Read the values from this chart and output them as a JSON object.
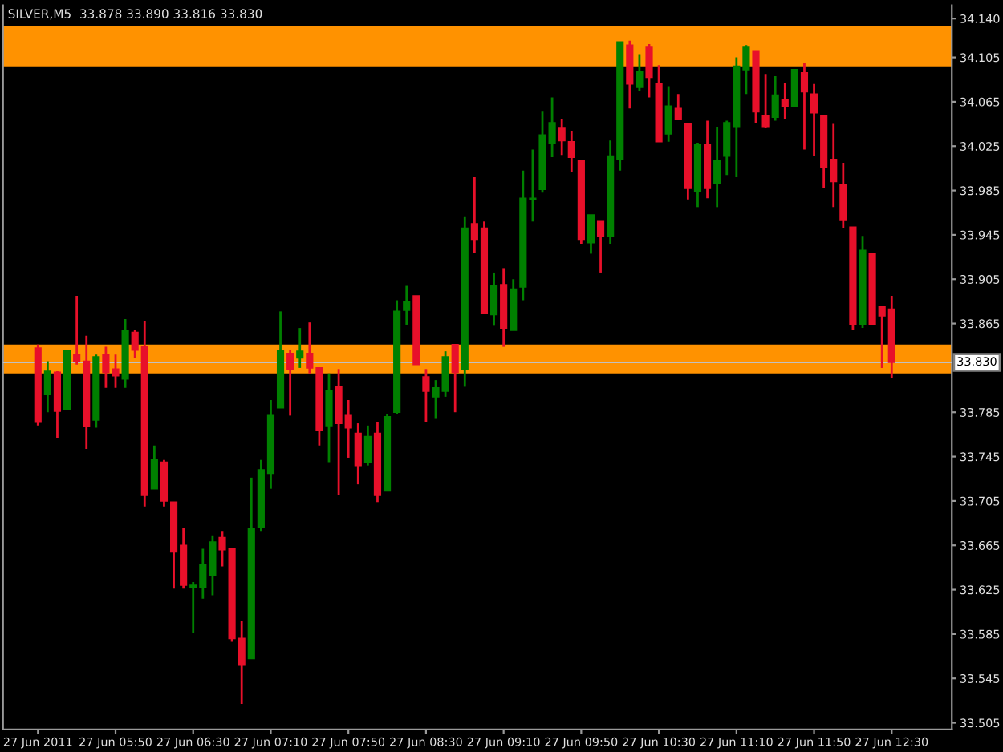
{
  "chart_data": {
    "type": "candlestick",
    "title": "SILVER,M5  33.878 33.890 33.816 33.830",
    "x": [
      "2011-06-27T05:10",
      "2011-06-27T05:15",
      "2011-06-27T05:20",
      "2011-06-27T05:25",
      "2011-06-27T05:30",
      "2011-06-27T05:35",
      "2011-06-27T05:40",
      "2011-06-27T05:45",
      "2011-06-27T05:50",
      "2011-06-27T05:55",
      "2011-06-27T06:00",
      "2011-06-27T06:05",
      "2011-06-27T06:10",
      "2011-06-27T06:15",
      "2011-06-27T06:20",
      "2011-06-27T06:25",
      "2011-06-27T06:30",
      "2011-06-27T06:35",
      "2011-06-27T06:40",
      "2011-06-27T06:45",
      "2011-06-27T06:50",
      "2011-06-27T06:55",
      "2011-06-27T07:00",
      "2011-06-27T07:05",
      "2011-06-27T07:10",
      "2011-06-27T07:15",
      "2011-06-27T07:20",
      "2011-06-27T07:25",
      "2011-06-27T07:30",
      "2011-06-27T07:35",
      "2011-06-27T07:40",
      "2011-06-27T07:45",
      "2011-06-27T07:50",
      "2011-06-27T07:55",
      "2011-06-27T08:00",
      "2011-06-27T08:05",
      "2011-06-27T08:10",
      "2011-06-27T08:15",
      "2011-06-27T08:20",
      "2011-06-27T08:25",
      "2011-06-27T08:30",
      "2011-06-27T08:35",
      "2011-06-27T08:40",
      "2011-06-27T08:45",
      "2011-06-27T08:50",
      "2011-06-27T08:55",
      "2011-06-27T09:00",
      "2011-06-27T09:05",
      "2011-06-27T09:10",
      "2011-06-27T09:15",
      "2011-06-27T09:20",
      "2011-06-27T09:25",
      "2011-06-27T09:30",
      "2011-06-27T09:35",
      "2011-06-27T09:40",
      "2011-06-27T09:45",
      "2011-06-27T09:50",
      "2011-06-27T09:55",
      "2011-06-27T10:00",
      "2011-06-27T10:05",
      "2011-06-27T10:10",
      "2011-06-27T10:15",
      "2011-06-27T10:20",
      "2011-06-27T10:25",
      "2011-06-27T10:30",
      "2011-06-27T10:35",
      "2011-06-27T10:40",
      "2011-06-27T10:45",
      "2011-06-27T10:50",
      "2011-06-27T10:55",
      "2011-06-27T11:00",
      "2011-06-27T11:05",
      "2011-06-27T11:10",
      "2011-06-27T11:15",
      "2011-06-27T11:20",
      "2011-06-27T11:25",
      "2011-06-27T11:30",
      "2011-06-27T11:35",
      "2011-06-27T11:40",
      "2011-06-27T11:45",
      "2011-06-27T11:50",
      "2011-06-27T11:55",
      "2011-06-27T12:00",
      "2011-06-27T12:05",
      "2011-06-27T12:10",
      "2011-06-27T12:15",
      "2011-06-27T12:20",
      "2011-06-27T12:25",
      "2011-06-27T12:30"
    ],
    "ohlc": [
      [
        33.843,
        33.846,
        33.773,
        33.776
      ],
      [
        33.801,
        33.831,
        33.785,
        33.822
      ],
      [
        33.821,
        33.822,
        33.762,
        33.786
      ],
      [
        33.788,
        33.841,
        33.788,
        33.841
      ],
      [
        33.837,
        33.89,
        33.828,
        33.831
      ],
      [
        33.831,
        33.854,
        33.752,
        33.772
      ],
      [
        33.778,
        33.837,
        33.771,
        33.835
      ],
      [
        33.837,
        33.844,
        33.807,
        33.821
      ],
      [
        33.824,
        33.837,
        33.807,
        33.818
      ],
      [
        33.815,
        33.869,
        33.807,
        33.859
      ],
      [
        33.857,
        33.859,
        33.834,
        33.841
      ],
      [
        33.844,
        33.867,
        33.7,
        33.71
      ],
      [
        33.716,
        33.755,
        33.716,
        33.742
      ],
      [
        33.74,
        33.742,
        33.7,
        33.705
      ],
      [
        33.704,
        33.704,
        33.626,
        33.659
      ],
      [
        33.665,
        33.681,
        33.626,
        33.629
      ],
      [
        33.627,
        33.632,
        33.586,
        33.629
      ],
      [
        33.627,
        33.662,
        33.617,
        33.648
      ],
      [
        33.638,
        33.674,
        33.62,
        33.668
      ],
      [
        33.672,
        33.678,
        33.646,
        33.661
      ],
      [
        33.662,
        33.662,
        33.578,
        33.581
      ],
      [
        33.581,
        33.597,
        33.522,
        33.557
      ],
      [
        33.563,
        33.726,
        33.563,
        33.68
      ],
      [
        33.681,
        33.742,
        33.678,
        33.733
      ],
      [
        33.73,
        33.796,
        33.716,
        33.782
      ],
      [
        33.789,
        33.876,
        33.789,
        33.841
      ],
      [
        33.838,
        33.841,
        33.782,
        33.824
      ],
      [
        33.834,
        33.861,
        33.825,
        33.84
      ],
      [
        33.838,
        33.866,
        33.82,
        33.825
      ],
      [
        33.825,
        33.825,
        33.755,
        33.769
      ],
      [
        33.773,
        33.82,
        33.74,
        33.804
      ],
      [
        33.808,
        33.824,
        33.71,
        33.775
      ],
      [
        33.782,
        33.796,
        33.744,
        33.771
      ],
      [
        33.766,
        33.775,
        33.72,
        33.737
      ],
      [
        33.74,
        33.773,
        33.737,
        33.763
      ],
      [
        33.766,
        33.776,
        33.704,
        33.71
      ],
      [
        33.714,
        33.783,
        33.714,
        33.781
      ],
      [
        33.785,
        33.886,
        33.783,
        33.876
      ],
      [
        33.877,
        33.899,
        33.864,
        33.885
      ],
      [
        33.89,
        33.89,
        33.828,
        33.828
      ],
      [
        33.817,
        33.824,
        33.776,
        33.804
      ],
      [
        33.799,
        33.814,
        33.779,
        33.807
      ],
      [
        33.804,
        33.84,
        33.799,
        33.835
      ],
      [
        33.846,
        33.846,
        33.785,
        33.821
      ],
      [
        33.824,
        33.961,
        33.808,
        33.951
      ],
      [
        33.955,
        33.997,
        33.929,
        33.941
      ],
      [
        33.951,
        33.957,
        33.874,
        33.874
      ],
      [
        33.873,
        33.911,
        33.863,
        33.899
      ],
      [
        33.9,
        33.915,
        33.844,
        33.861
      ],
      [
        33.859,
        33.905,
        33.859,
        33.896
      ],
      [
        33.898,
        34.003,
        33.886,
        33.978
      ],
      [
        33.977,
        34.022,
        33.957,
        33.978
      ],
      [
        33.986,
        34.056,
        33.983,
        34.035
      ],
      [
        34.028,
        34.069,
        34.015,
        34.046
      ],
      [
        34.041,
        34.049,
        34.017,
        34.03
      ],
      [
        34.029,
        34.039,
        34.002,
        34.015
      ],
      [
        34.012,
        34.012,
        33.937,
        33.941
      ],
      [
        33.938,
        33.963,
        33.928,
        33.963
      ],
      [
        33.957,
        33.957,
        33.911,
        33.944
      ],
      [
        33.944,
        34.03,
        33.937,
        34.016
      ],
      [
        34.013,
        34.119,
        34.003,
        34.119
      ],
      [
        34.116,
        34.12,
        34.059,
        34.081
      ],
      [
        34.078,
        34.108,
        34.075,
        34.092
      ],
      [
        34.114,
        34.117,
        34.069,
        34.087
      ],
      [
        34.081,
        34.098,
        34.029,
        34.029
      ],
      [
        34.036,
        34.079,
        34.029,
        34.061
      ],
      [
        34.059,
        34.072,
        34.049,
        34.049
      ],
      [
        34.045,
        34.046,
        33.977,
        33.987
      ],
      [
        33.984,
        34.028,
        33.97,
        34.026
      ],
      [
        34.026,
        34.048,
        33.978,
        33.987
      ],
      [
        33.991,
        34.042,
        33.97,
        34.012
      ],
      [
        34.016,
        34.048,
        33.999,
        34.046
      ],
      [
        34.042,
        34.105,
        33.997,
        34.097
      ],
      [
        34.094,
        34.116,
        34.072,
        34.114
      ],
      [
        34.111,
        34.111,
        34.046,
        34.056
      ],
      [
        34.052,
        34.09,
        34.041,
        34.042
      ],
      [
        34.051,
        34.088,
        34.048,
        34.071
      ],
      [
        34.067,
        34.082,
        34.049,
        34.061
      ],
      [
        34.061,
        34.094,
        34.061,
        34.094
      ],
      [
        34.091,
        34.1,
        34.022,
        34.074
      ],
      [
        34.072,
        34.081,
        34.016,
        34.055
      ],
      [
        34.052,
        34.052,
        33.987,
        34.006
      ],
      [
        34.013,
        34.045,
        33.97,
        33.993
      ],
      [
        33.99,
        34.01,
        33.951,
        33.958
      ],
      [
        33.952,
        33.952,
        33.859,
        33.864
      ],
      [
        33.864,
        33.944,
        33.861,
        33.931
      ],
      [
        33.928,
        33.928,
        33.864,
        33.864
      ],
      [
        33.88,
        33.88,
        33.825,
        33.872
      ],
      [
        33.878,
        33.89,
        33.816,
        33.83
      ]
    ],
    "colors": [
      "#e8102a",
      "#008000",
      "#e8102a",
      "#008000",
      "#e8102a",
      "#e8102a",
      "#008000",
      "#e8102a",
      "#e8102a",
      "#008000",
      "#e8102a",
      "#e8102a",
      "#008000",
      "#e8102a",
      "#e8102a",
      "#e8102a",
      "#008000",
      "#008000",
      "#008000",
      "#e8102a",
      "#e8102a",
      "#e8102a",
      "#008000",
      "#008000",
      "#008000",
      "#008000",
      "#e8102a",
      "#008000",
      "#e8102a",
      "#e8102a",
      "#008000",
      "#e8102a",
      "#e8102a",
      "#e8102a",
      "#008000",
      "#e8102a",
      "#008000",
      "#008000",
      "#008000",
      "#e8102a",
      "#e8102a",
      "#008000",
      "#008000",
      "#e8102a",
      "#008000",
      "#e8102a",
      "#e8102a",
      "#008000",
      "#e8102a",
      "#008000",
      "#008000",
      "#008000",
      "#008000",
      "#008000",
      "#e8102a",
      "#e8102a",
      "#e8102a",
      "#008000",
      "#e8102a",
      "#008000",
      "#008000",
      "#e8102a",
      "#008000",
      "#e8102a",
      "#e8102a",
      "#008000",
      "#e8102a",
      "#e8102a",
      "#008000",
      "#e8102a",
      "#008000",
      "#008000",
      "#008000",
      "#008000",
      "#e8102a",
      "#e8102a",
      "#008000",
      "#e8102a",
      "#008000",
      "#e8102a",
      "#e8102a",
      "#e8102a",
      "#e8102a",
      "#e8102a",
      "#e8102a",
      "#008000",
      "#e8102a",
      "#e8102a",
      "#e8102a"
    ],
    "xlim": [
      "2011-06-27T04:52",
      "2011-06-27T13:01"
    ],
    "xticks": [
      {
        "value": "2011-06-27T05:10",
        "label": "27 Jun 2011"
      },
      {
        "value": "2011-06-27T05:50",
        "label": "27 Jun 05:50"
      },
      {
        "value": "2011-06-27T06:30",
        "label": "27 Jun 06:30"
      },
      {
        "value": "2011-06-27T07:10",
        "label": "27 Jun 07:10"
      },
      {
        "value": "2011-06-27T07:50",
        "label": "27 Jun 07:50"
      },
      {
        "value": "2011-06-27T08:30",
        "label": "27 Jun 08:30"
      },
      {
        "value": "2011-06-27T09:10",
        "label": "27 Jun 09:10"
      },
      {
        "value": "2011-06-27T09:50",
        "label": "27 Jun 09:50"
      },
      {
        "value": "2011-06-27T10:30",
        "label": "27 Jun 10:30"
      },
      {
        "value": "2011-06-27T11:10",
        "label": "27 Jun 11:10"
      },
      {
        "value": "2011-06-27T11:50",
        "label": "27 Jun 11:50"
      },
      {
        "value": "2011-06-27T12:30",
        "label": "27 Jun 12:30"
      }
    ],
    "ylim": [
      33.499,
      34.152
    ],
    "yticks": [
      {
        "value": 34.14,
        "label": "34.140"
      },
      {
        "value": 34.105,
        "label": "34.105"
      },
      {
        "value": 34.065,
        "label": "34.065"
      },
      {
        "value": 34.025,
        "label": "34.025"
      },
      {
        "value": 33.985,
        "label": "33.985"
      },
      {
        "value": 33.945,
        "label": "33.945"
      },
      {
        "value": 33.905,
        "label": "33.905"
      },
      {
        "value": 33.865,
        "label": "33.865"
      },
      {
        "value": 33.785,
        "label": "33.785"
      },
      {
        "value": 33.745,
        "label": "33.745"
      },
      {
        "value": 33.705,
        "label": "33.705"
      },
      {
        "value": 33.665,
        "label": "33.665"
      },
      {
        "value": 33.625,
        "label": "33.625"
      },
      {
        "value": 33.585,
        "label": "33.585"
      },
      {
        "value": 33.545,
        "label": "33.545"
      },
      {
        "value": 33.505,
        "label": "33.505"
      }
    ],
    "bands": [
      {
        "axis": "y",
        "from": 34.097,
        "to": 34.133,
        "color": "#ff9200"
      },
      {
        "axis": "y",
        "from": 33.82,
        "to": 33.846,
        "color": "#ff9200"
      }
    ],
    "ref_lines": [
      {
        "axis": "y",
        "value": 33.83,
        "label": "33.830",
        "color": "#c0c0c0"
      }
    ],
    "grid": false
  }
}
